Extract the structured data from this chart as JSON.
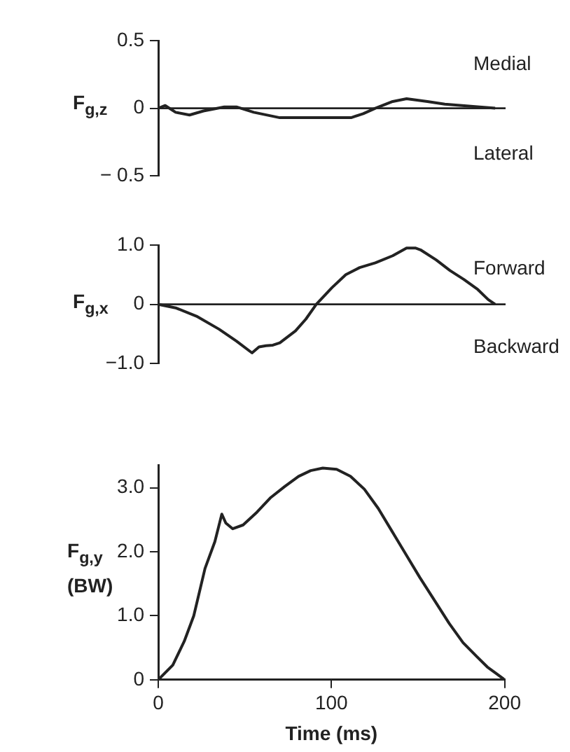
{
  "chart_data": [
    {
      "type": "line",
      "ylabel": "F$_{g,z}$",
      "annotations": [
        "Medial",
        "Lateral"
      ],
      "tick_labels": "y",
      "marker": "none",
      "color": "#222222",
      "xlim": [
        0,
        200
      ],
      "ylim": [
        -0.5,
        0.5
      ],
      "yticks": [
        {
          "value": -0.5,
          "label": "− 0.5"
        },
        {
          "value": 0,
          "label": "0"
        },
        0.5
      ],
      "ref_lines": [
        {
          "axis": "y",
          "value": 0
        }
      ],
      "x": [
        0,
        4,
        10,
        18,
        26,
        38,
        45,
        55,
        70,
        90,
        111,
        118,
        125,
        135,
        143,
        155,
        165,
        175,
        185,
        194
      ],
      "values": [
        0,
        0.02,
        -0.03,
        -0.05,
        -0.02,
        0.01,
        0.01,
        -0.03,
        -0.07,
        -0.07,
        -0.07,
        -0.04,
        0,
        0.05,
        0.07,
        0.05,
        0.03,
        0.02,
        0.01,
        0
      ]
    },
    {
      "type": "line",
      "ylabel": "F$_{g,x}$",
      "annotations": [
        "Forward",
        "Backward"
      ],
      "tick_labels": "y",
      "marker": "none",
      "color": "#222222",
      "xlim": [
        0,
        200
      ],
      "ylim": [
        -1,
        1
      ],
      "yticks": [
        {
          "value": -1,
          "label": "−1.0"
        },
        {
          "value": 0,
          "label": "0"
        },
        {
          "value": 1,
          "label": "1.0"
        }
      ],
      "ref_lines": [
        {
          "axis": "y",
          "value": 0
        }
      ],
      "x": [
        0,
        10,
        22,
        35,
        45,
        54,
        58,
        62,
        66,
        70,
        79,
        85,
        91,
        100,
        108,
        116,
        125,
        135,
        143,
        148,
        151,
        160,
        168,
        176,
        184,
        190,
        194
      ],
      "values": [
        0,
        -0.06,
        -0.2,
        -0.42,
        -0.62,
        -0.82,
        -0.72,
        -0.7,
        -0.69,
        -0.65,
        -0.45,
        -0.25,
        0,
        0.28,
        0.5,
        0.62,
        0.7,
        0.82,
        0.95,
        0.95,
        0.92,
        0.75,
        0.57,
        0.42,
        0.25,
        0.08,
        0
      ]
    },
    {
      "type": "line",
      "ylabel": "F$_{g,y}$ (BW)",
      "xlabel": "Time (ms)",
      "marker": "none",
      "color": "#222222",
      "xlim": [
        0,
        200
      ],
      "ylim": [
        0,
        3.35
      ],
      "xticks": [
        {
          "value": 0,
          "label": "0"
        },
        100,
        200
      ],
      "yticks": [
        {
          "value": 0,
          "label": "0"
        },
        {
          "value": 1,
          "label": "1.0"
        },
        {
          "value": 2,
          "label": "2.0"
        },
        {
          "value": 3,
          "label": "3.0"
        }
      ],
      "x": [
        0,
        8.4,
        15,
        20.5,
        27,
        32.7,
        36.7,
        39,
        43,
        49,
        57,
        65,
        73,
        81,
        88,
        95,
        103,
        111,
        119,
        127,
        135,
        143,
        151,
        160,
        168,
        176,
        184,
        190,
        195,
        200
      ],
      "values": [
        0,
        0.23,
        0.6,
        1,
        1.74,
        2.16,
        2.59,
        2.45,
        2.36,
        2.42,
        2.62,
        2.85,
        3.02,
        3.18,
        3.27,
        3.31,
        3.29,
        3.18,
        2.98,
        2.68,
        2.32,
        1.96,
        1.6,
        1.22,
        0.88,
        0.58,
        0.36,
        0.2,
        0.1,
        0
      ]
    }
  ]
}
